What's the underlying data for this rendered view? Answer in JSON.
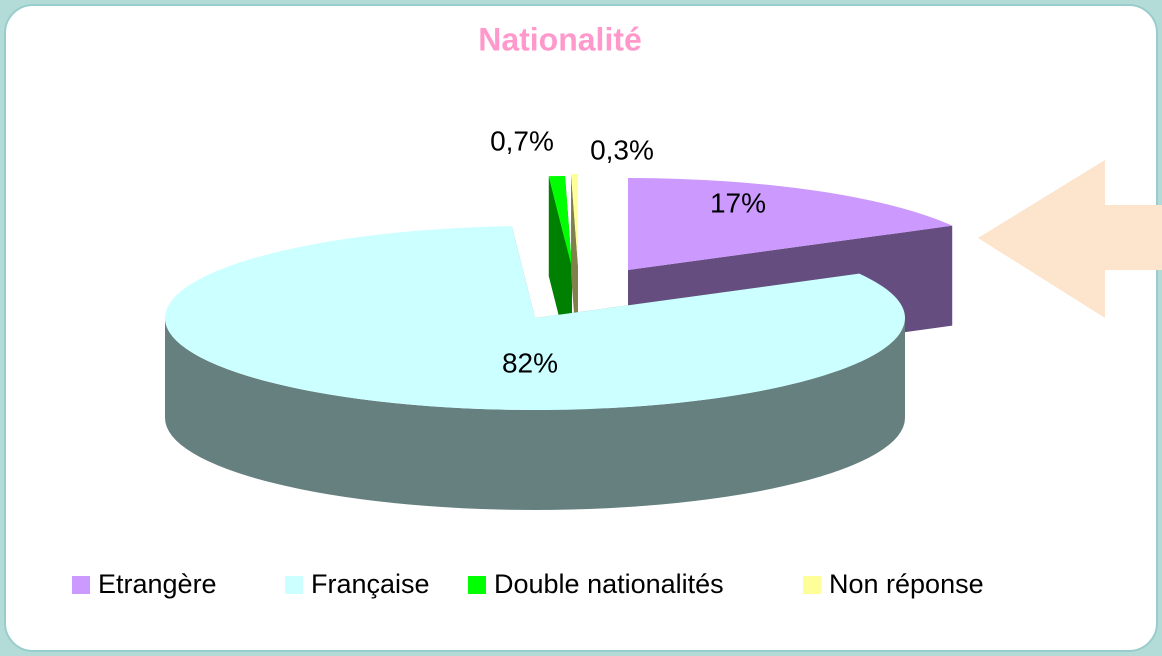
{
  "chart_data": {
    "type": "pie",
    "title": "Nationalité",
    "categories": [
      "Etrangère",
      "Française",
      "Double nationalités",
      "Non réponse"
    ],
    "values": [
      17,
      82,
      0.7,
      0.3
    ],
    "value_labels": [
      "17%",
      "82%",
      "0,7%",
      "0,3%"
    ],
    "colors": [
      "#cc99ff",
      "#ccffff",
      "#00ff00",
      "#ffff99"
    ],
    "side_colors": [
      "#664d80",
      "#668080",
      "#008000",
      "#80804d"
    ],
    "legend": "bottom"
  }
}
